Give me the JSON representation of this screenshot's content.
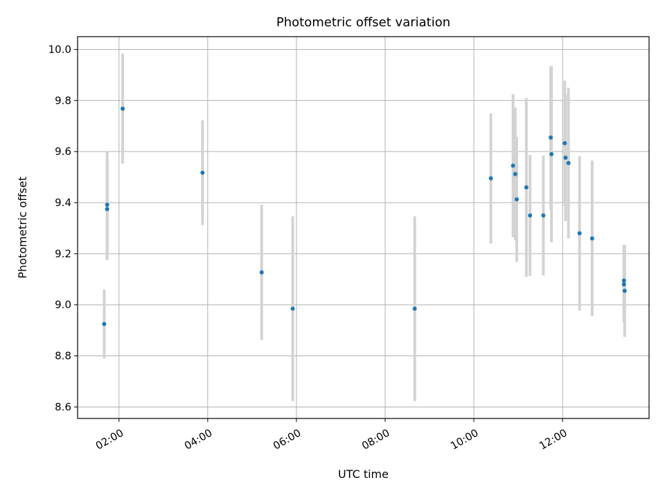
{
  "chart_data": {
    "type": "scatter",
    "title": "Photometric offset variation",
    "xlabel": "UTC time",
    "ylabel": "Photometric offset",
    "x_ticks": [
      "02:00",
      "04:00",
      "06:00",
      "08:00",
      "10:00",
      "12:00"
    ],
    "y_ticks": [
      "8.6",
      "8.8",
      "9.0",
      "9.2",
      "9.4",
      "9.6",
      "9.8",
      "10.0"
    ],
    "xlim": [
      "01:04",
      "13:57"
    ],
    "ylim": [
      8.555,
      10.05
    ],
    "grid": true,
    "legend": "none",
    "colors": {
      "point": "#1f77b4",
      "errorbar": "#d3d3d3",
      "grid": "#b0b0b0"
    },
    "points": [
      {
        "t": "01:40",
        "y": 8.925,
        "err": 0.135
      },
      {
        "t": "01:44",
        "y": 9.392,
        "err": 0.21
      },
      {
        "t": "01:44",
        "y": 9.375,
        "err": 0.2
      },
      {
        "t": "02:05",
        "y": 9.768,
        "err": 0.215
      },
      {
        "t": "03:53",
        "y": 9.517,
        "err": 0.205
      },
      {
        "t": "05:13",
        "y": 9.127,
        "err": 0.265
      },
      {
        "t": "05:55",
        "y": 8.985,
        "err": 0.362
      },
      {
        "t": "08:40",
        "y": 8.985,
        "err": 0.362
      },
      {
        "t": "10:23",
        "y": 9.495,
        "err": 0.255
      },
      {
        "t": "10:53",
        "y": 9.545,
        "err": 0.28
      },
      {
        "t": "10:56",
        "y": 9.512,
        "err": 0.26
      },
      {
        "t": "10:58",
        "y": 9.413,
        "err": 0.245
      },
      {
        "t": "11:11",
        "y": 9.46,
        "err": 0.35
      },
      {
        "t": "11:16",
        "y": 9.35,
        "err": 0.237
      },
      {
        "t": "11:34",
        "y": 9.35,
        "err": 0.235
      },
      {
        "t": "11:44",
        "y": 9.655,
        "err": 0.28
      },
      {
        "t": "11:45",
        "y": 9.59,
        "err": 0.345
      },
      {
        "t": "12:03",
        "y": 9.633,
        "err": 0.245
      },
      {
        "t": "12:04",
        "y": 9.576,
        "err": 0.248
      },
      {
        "t": "12:08",
        "y": 9.555,
        "err": 0.295
      },
      {
        "t": "12:23",
        "y": 9.28,
        "err": 0.302
      },
      {
        "t": "12:40",
        "y": 9.26,
        "err": 0.305
      },
      {
        "t": "13:23",
        "y": 9.095,
        "err": 0.14
      },
      {
        "t": "13:23",
        "y": 9.08,
        "err": 0.15
      },
      {
        "t": "13:24",
        "y": 9.055,
        "err": 0.18
      }
    ]
  }
}
